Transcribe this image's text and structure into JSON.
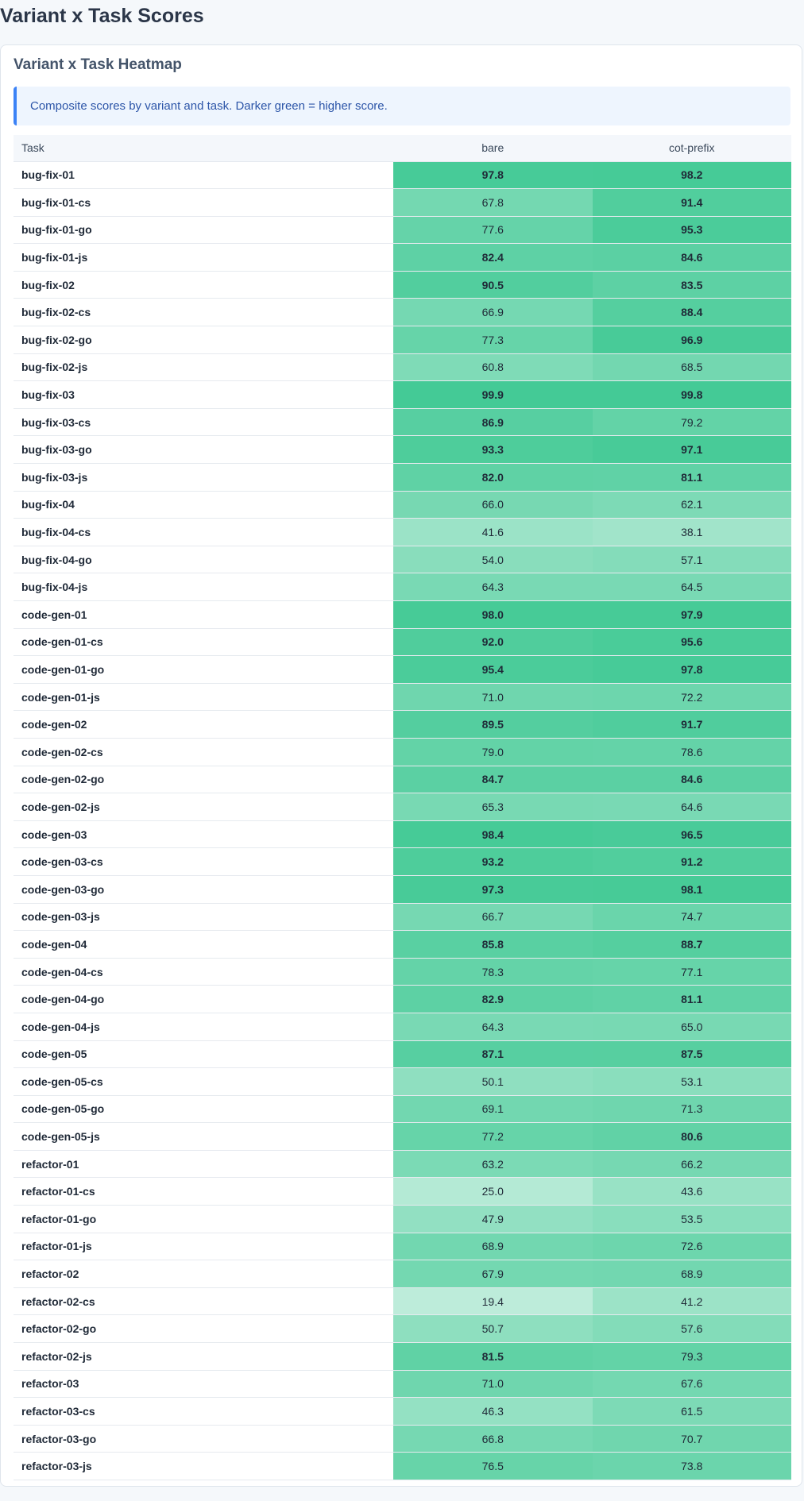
{
  "page": {
    "title": "Variant x Task Scores"
  },
  "card": {
    "title": "Variant x Task Heatmap",
    "description": "Composite scores by variant and task. Darker green = higher score."
  },
  "colors": {
    "accent": "#3b82f6",
    "heat_base": "#2fc48a"
  },
  "chart_data": {
    "type": "heatmap",
    "title": "Variant x Task Heatmap",
    "row_header": "Task",
    "columns": [
      "bare",
      "cot-prefix"
    ],
    "bold_threshold": 80,
    "rows": [
      {
        "task": "bug-fix-01",
        "values": [
          97.8,
          98.2
        ]
      },
      {
        "task": "bug-fix-01-cs",
        "values": [
          67.8,
          91.4
        ]
      },
      {
        "task": "bug-fix-01-go",
        "values": [
          77.6,
          95.3
        ]
      },
      {
        "task": "bug-fix-01-js",
        "values": [
          82.4,
          84.6
        ]
      },
      {
        "task": "bug-fix-02",
        "values": [
          90.5,
          83.5
        ]
      },
      {
        "task": "bug-fix-02-cs",
        "values": [
          66.9,
          88.4
        ]
      },
      {
        "task": "bug-fix-02-go",
        "values": [
          77.3,
          96.9
        ]
      },
      {
        "task": "bug-fix-02-js",
        "values": [
          60.8,
          68.5
        ]
      },
      {
        "task": "bug-fix-03",
        "values": [
          99.9,
          99.8
        ]
      },
      {
        "task": "bug-fix-03-cs",
        "values": [
          86.9,
          79.2
        ]
      },
      {
        "task": "bug-fix-03-go",
        "values": [
          93.3,
          97.1
        ]
      },
      {
        "task": "bug-fix-03-js",
        "values": [
          82.0,
          81.1
        ]
      },
      {
        "task": "bug-fix-04",
        "values": [
          66.0,
          62.1
        ]
      },
      {
        "task": "bug-fix-04-cs",
        "values": [
          41.6,
          38.1
        ]
      },
      {
        "task": "bug-fix-04-go",
        "values": [
          54.0,
          57.1
        ]
      },
      {
        "task": "bug-fix-04-js",
        "values": [
          64.3,
          64.5
        ]
      },
      {
        "task": "code-gen-01",
        "values": [
          98.0,
          97.9
        ]
      },
      {
        "task": "code-gen-01-cs",
        "values": [
          92.0,
          95.6
        ]
      },
      {
        "task": "code-gen-01-go",
        "values": [
          95.4,
          97.8
        ]
      },
      {
        "task": "code-gen-01-js",
        "values": [
          71.0,
          72.2
        ]
      },
      {
        "task": "code-gen-02",
        "values": [
          89.5,
          91.7
        ]
      },
      {
        "task": "code-gen-02-cs",
        "values": [
          79.0,
          78.6
        ]
      },
      {
        "task": "code-gen-02-go",
        "values": [
          84.7,
          84.6
        ]
      },
      {
        "task": "code-gen-02-js",
        "values": [
          65.3,
          64.6
        ]
      },
      {
        "task": "code-gen-03",
        "values": [
          98.4,
          96.5
        ]
      },
      {
        "task": "code-gen-03-cs",
        "values": [
          93.2,
          91.2
        ]
      },
      {
        "task": "code-gen-03-go",
        "values": [
          97.3,
          98.1
        ]
      },
      {
        "task": "code-gen-03-js",
        "values": [
          66.7,
          74.7
        ]
      },
      {
        "task": "code-gen-04",
        "values": [
          85.8,
          88.7
        ]
      },
      {
        "task": "code-gen-04-cs",
        "values": [
          78.3,
          77.1
        ]
      },
      {
        "task": "code-gen-04-go",
        "values": [
          82.9,
          81.1
        ]
      },
      {
        "task": "code-gen-04-js",
        "values": [
          64.3,
          65.0
        ]
      },
      {
        "task": "code-gen-05",
        "values": [
          87.1,
          87.5
        ]
      },
      {
        "task": "code-gen-05-cs",
        "values": [
          50.1,
          53.1
        ]
      },
      {
        "task": "code-gen-05-go",
        "values": [
          69.1,
          71.3
        ]
      },
      {
        "task": "code-gen-05-js",
        "values": [
          77.2,
          80.6
        ]
      },
      {
        "task": "refactor-01",
        "values": [
          63.2,
          66.2
        ]
      },
      {
        "task": "refactor-01-cs",
        "values": [
          25.0,
          43.6
        ]
      },
      {
        "task": "refactor-01-go",
        "values": [
          47.9,
          53.5
        ]
      },
      {
        "task": "refactor-01-js",
        "values": [
          68.9,
          72.6
        ]
      },
      {
        "task": "refactor-02",
        "values": [
          67.9,
          68.9
        ]
      },
      {
        "task": "refactor-02-cs",
        "values": [
          19.4,
          41.2
        ]
      },
      {
        "task": "refactor-02-go",
        "values": [
          50.7,
          57.6
        ]
      },
      {
        "task": "refactor-02-js",
        "values": [
          81.5,
          79.3
        ]
      },
      {
        "task": "refactor-03",
        "values": [
          71.0,
          67.6
        ]
      },
      {
        "task": "refactor-03-cs",
        "values": [
          46.3,
          61.5
        ]
      },
      {
        "task": "refactor-03-go",
        "values": [
          66.8,
          70.7
        ]
      },
      {
        "task": "refactor-03-js",
        "values": [
          76.5,
          73.8
        ]
      }
    ]
  }
}
